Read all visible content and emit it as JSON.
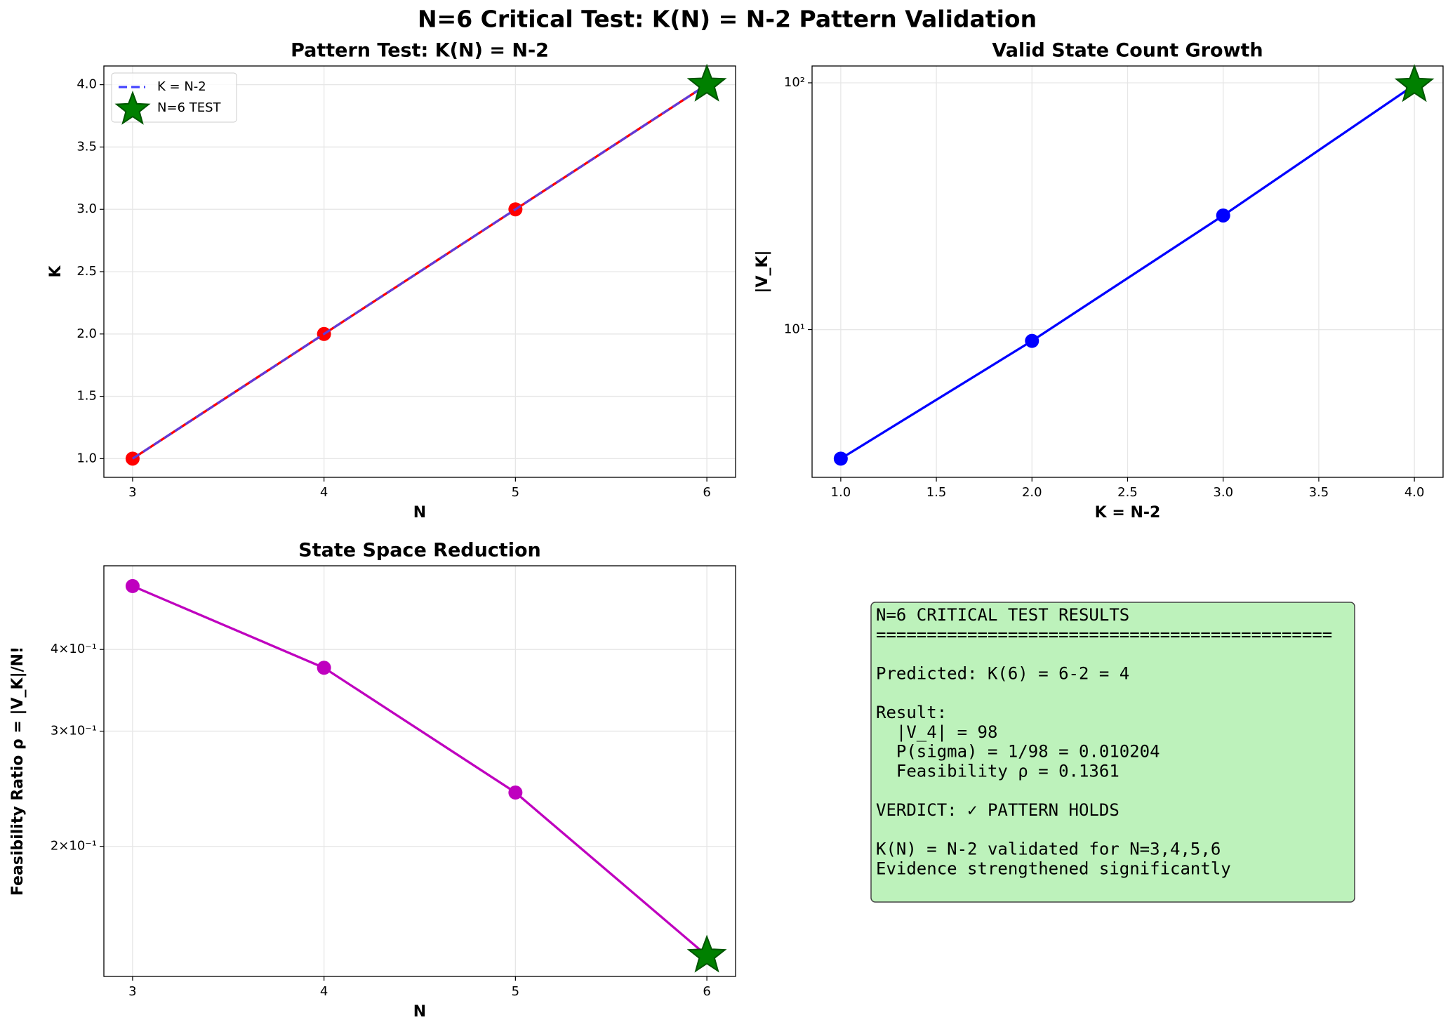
{
  "title": "N=6 Critical Test: K(N) = N-2 Pattern Validation",
  "chart_data": [
    {
      "type": "line",
      "title": "Pattern Test: K(N) = N-2",
      "xlabel": "N",
      "ylabel": "K",
      "xlim": [
        2.85,
        6.15
      ],
      "ylim": [
        0.85,
        4.15
      ],
      "xticks": [
        3,
        4,
        5,
        6
      ],
      "yticks": [
        {
          "value": 1,
          "label": "1.0"
        },
        {
          "value": 1.5,
          "label": "1.5"
        },
        {
          "value": 2,
          "label": "2.0"
        },
        {
          "value": 2.5,
          "label": "2.5"
        },
        {
          "value": 3,
          "label": "3.0"
        },
        {
          "value": 3.5,
          "label": "3.5"
        },
        {
          "value": 4,
          "label": "4.0"
        }
      ],
      "grid": true,
      "legend": "upper left",
      "series": [
        {
          "color": "#ff0000",
          "x": [
            3,
            4,
            5,
            6
          ],
          "values": [
            1,
            2,
            3,
            4
          ],
          "linestyle": "solid",
          "marker": "circle"
        },
        {
          "name": "K = N-2",
          "color": "#4444ff",
          "x": [
            3,
            4,
            5,
            6
          ],
          "values": [
            1,
            2,
            3,
            4
          ],
          "linestyle": "dashed",
          "marker": "none"
        },
        {
          "name": "N=6 TEST",
          "color": "#008000",
          "x": [
            6
          ],
          "values": [
            4
          ],
          "linestyle": "none",
          "marker": "star"
        }
      ]
    },
    {
      "type": "line",
      "title": "Valid State Count Growth",
      "xlabel": "K = N-2",
      "ylabel": "|V_K|",
      "xlim": [
        0.85,
        4.15
      ],
      "ylim": [
        2.52,
        117
      ],
      "yscale": "log",
      "xticks": [
        {
          "value": 1,
          "label": "1.0"
        },
        {
          "value": 1.5,
          "label": "1.5"
        },
        {
          "value": 2,
          "label": "2.0"
        },
        {
          "value": 2.5,
          "label": "2.5"
        },
        {
          "value": 3,
          "label": "3.0"
        },
        {
          "value": 3.5,
          "label": "3.5"
        },
        {
          "value": 4,
          "label": "4.0"
        }
      ],
      "yticks": [
        {
          "value": 10,
          "label": "10¹"
        },
        {
          "value": 100,
          "label": "10²"
        }
      ],
      "grid": true,
      "series": [
        {
          "color": "#0000ff",
          "x": [
            1,
            2,
            3,
            4
          ],
          "values": [
            3,
            9,
            29,
            98
          ],
          "linestyle": "solid",
          "marker": "circle"
        },
        {
          "color": "#008000",
          "x": [
            4
          ],
          "values": [
            98
          ],
          "linestyle": "none",
          "marker": "star"
        }
      ]
    },
    {
      "type": "line",
      "title": "State Space Reduction",
      "xlabel": "N",
      "ylabel": "Feasibility Ratio ρ = |V_K|/N!",
      "xlim": [
        2.85,
        6.15
      ],
      "ylim": [
        0.1265,
        0.537
      ],
      "yscale": "log",
      "xticks": [
        3,
        4,
        5,
        6
      ],
      "yticks": [
        {
          "value": 0.2,
          "label": "2×10⁻¹"
        },
        {
          "value": 0.3,
          "label": "3×10⁻¹"
        },
        {
          "value": 0.4,
          "label": "4×10⁻¹"
        }
      ],
      "grid": true,
      "series": [
        {
          "color": "#bf00bf",
          "x": [
            3,
            4,
            5,
            6
          ],
          "values": [
            0.5,
            0.375,
            0.2417,
            0.1361
          ],
          "linestyle": "solid",
          "marker": "circle"
        },
        {
          "color": "#008000",
          "x": [
            6
          ],
          "values": [
            0.1361
          ],
          "linestyle": "none",
          "marker": "star"
        }
      ]
    }
  ],
  "text_box": {
    "paragraphs": [
      [
        "N=6 CRITICAL TEST RESULTS",
        "============================================="
      ],
      [
        "Predicted: K(6) = 6-2 = 4"
      ],
      [
        "Result:",
        "  |V_4| = 98",
        "  P(sigma) = 1/98 = 0.010204",
        "  Feasibility ρ = 0.1361"
      ],
      [
        "VERDICT: ✓ PATTERN HOLDS"
      ],
      [
        "K(N) = N-2 validated for N=3,4,5,6",
        "Evidence strengthened significantly"
      ]
    ]
  }
}
